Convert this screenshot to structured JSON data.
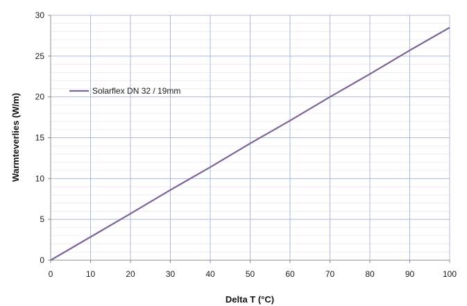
{
  "chart_data": {
    "type": "line",
    "title": "",
    "xlabel": "Delta T (°C)",
    "ylabel": "Warmteverlies (W/m)",
    "xlim": [
      0,
      100
    ],
    "ylim": [
      0,
      30
    ],
    "x_ticks": [
      0,
      10,
      20,
      30,
      40,
      50,
      60,
      70,
      80,
      90,
      100
    ],
    "y_ticks": [
      0,
      5,
      10,
      15,
      20,
      25,
      30
    ],
    "x_tick_labels": [
      "0",
      "10",
      "20",
      "30",
      "40",
      "50",
      "60",
      "70",
      "80",
      "90",
      "100"
    ],
    "y_tick_labels": [
      "0",
      "5",
      "10",
      "15",
      "20",
      "25",
      "30"
    ],
    "grid": true,
    "minor_grid": true,
    "legend_position": "upper-left",
    "series": [
      {
        "name": "Solarflex DN 32 / 19mm",
        "color": "#7b6396",
        "x": [
          0,
          10,
          20,
          30,
          40,
          50,
          60,
          70,
          80,
          90,
          100
        ],
        "y": [
          0,
          2.85,
          5.7,
          8.6,
          11.4,
          14.3,
          17.1,
          20.0,
          22.8,
          25.7,
          28.5
        ]
      }
    ]
  }
}
